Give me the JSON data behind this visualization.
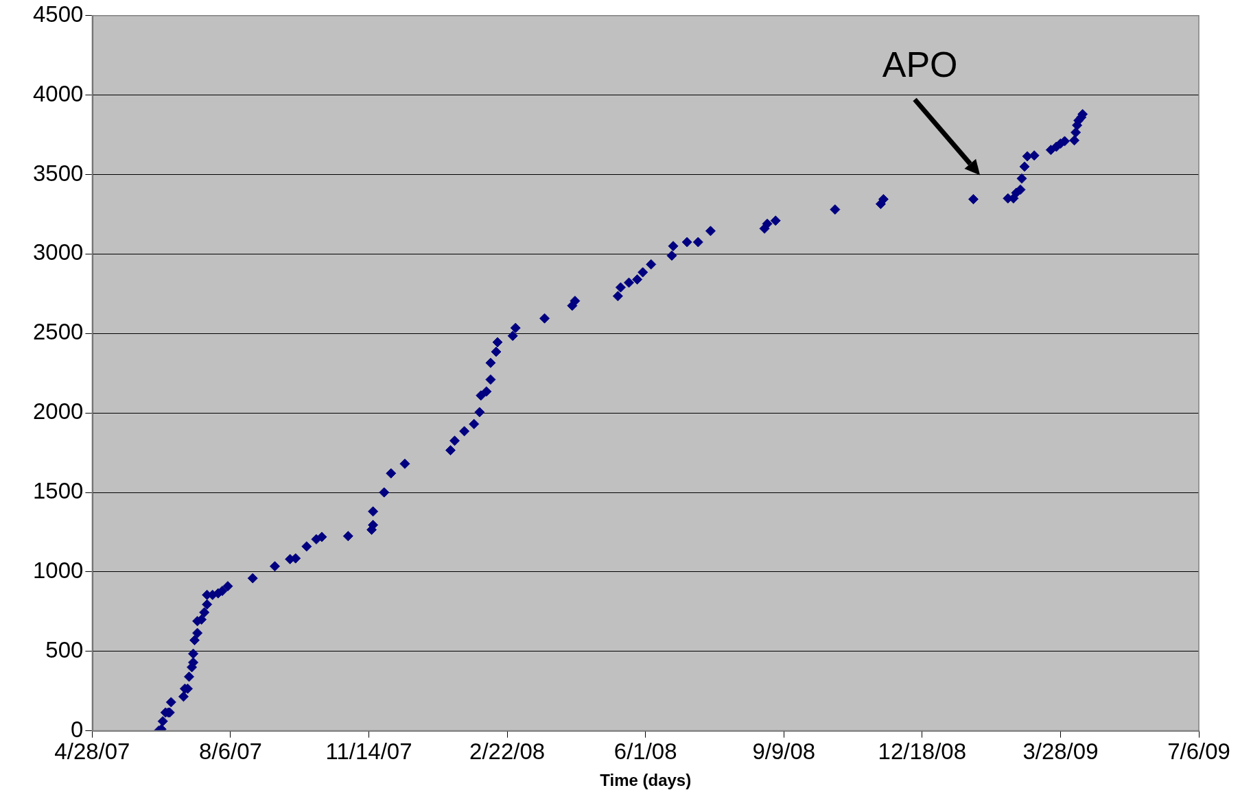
{
  "chart_data": {
    "type": "scatter",
    "xlabel": "Time (days)",
    "x": [
      "2007-06-15",
      "2007-06-17",
      "2007-06-18",
      "2007-06-20",
      "2007-06-22",
      "2007-06-24",
      "2007-06-23",
      "2007-07-03",
      "2007-07-04",
      "2007-07-06",
      "2007-07-07",
      "2007-07-09",
      "2007-07-10",
      "2007-07-10",
      "2007-07-11",
      "2007-07-13",
      "2007-07-13",
      "2007-07-16",
      "2007-07-18",
      "2007-07-20",
      "2007-07-20",
      "2007-07-24",
      "2007-07-28",
      "2007-07-31",
      "2007-08-04",
      "2007-08-22",
      "2007-09-07",
      "2007-09-18",
      "2007-09-22",
      "2007-09-30",
      "2007-10-07",
      "2007-10-11",
      "2007-10-30",
      "2007-11-16",
      "2007-11-17",
      "2007-11-17",
      "2007-11-25",
      "2007-11-30",
      "2007-12-10",
      "2008-01-12",
      "2008-01-15",
      "2008-01-22",
      "2008-01-29",
      "2008-02-02",
      "2008-02-03",
      "2008-02-07",
      "2008-02-10",
      "2008-02-10",
      "2008-02-14",
      "2008-02-15",
      "2008-02-26",
      "2008-02-28",
      "2008-03-20",
      "2008-04-09",
      "2008-04-11",
      "2008-05-12",
      "2008-05-14",
      "2008-05-20",
      "2008-05-26",
      "2008-05-30",
      "2008-06-05",
      "2008-06-20",
      "2008-06-21",
      "2008-07-01",
      "2008-07-09",
      "2008-07-18",
      "2008-08-26",
      "2008-08-28",
      "2008-09-03",
      "2008-10-16",
      "2008-11-18",
      "2008-11-20",
      "2009-01-24",
      "2009-02-18",
      "2009-02-22",
      "2009-02-24",
      "2009-02-27",
      "2009-02-28",
      "2009-03-02",
      "2009-03-04",
      "2009-03-09",
      "2009-03-21",
      "2009-03-25",
      "2009-03-28",
      "2009-03-31",
      "2009-04-07",
      "2009-04-08",
      "2009-04-09",
      "2009-04-10",
      "2009-04-12",
      "2009-04-13"
    ],
    "values": [
      0,
      10,
      60,
      115,
      115,
      180,
      115,
      215,
      265,
      265,
      340,
      400,
      430,
      485,
      570,
      615,
      690,
      700,
      745,
      795,
      855,
      855,
      865,
      880,
      910,
      960,
      1035,
      1080,
      1085,
      1160,
      1205,
      1220,
      1225,
      1265,
      1295,
      1380,
      1500,
      1620,
      1680,
      1765,
      1825,
      1885,
      1930,
      2005,
      2110,
      2135,
      2210,
      2315,
      2385,
      2445,
      2485,
      2535,
      2595,
      2675,
      2705,
      2735,
      2790,
      2820,
      2840,
      2885,
      2935,
      2990,
      3050,
      3075,
      3075,
      3145,
      3160,
      3190,
      3210,
      3280,
      3315,
      3345,
      3345,
      3350,
      3350,
      3385,
      3405,
      3475,
      3550,
      3615,
      3620,
      3655,
      3675,
      3695,
      3710,
      3715,
      3765,
      3810,
      3840,
      3860,
      3880
    ],
    "color": "#000080",
    "marker": "diamond",
    "xlim": [
      "2007-04-28",
      "2009-07-06"
    ],
    "xticks": [
      {
        "value": "2007-04-28",
        "label": "4/28/07"
      },
      {
        "value": "2007-08-06",
        "label": "8/6/07"
      },
      {
        "value": "2007-11-14",
        "label": "11/14/07"
      },
      {
        "value": "2008-02-22",
        "label": "2/22/08"
      },
      {
        "value": "2008-06-01",
        "label": "6/1/08"
      },
      {
        "value": "2008-09-09",
        "label": "9/9/08"
      },
      {
        "value": "2008-12-18",
        "label": "12/18/08"
      },
      {
        "value": "2009-03-28",
        "label": "3/28/09"
      },
      {
        "value": "2009-07-06",
        "label": "7/6/09"
      }
    ],
    "ylim": [
      0,
      4500
    ],
    "yticks": [
      0,
      500,
      1000,
      1500,
      2000,
      2500,
      3000,
      3500,
      4000,
      4500
    ],
    "grid": "y",
    "legend": false,
    "annotations": [
      "APO"
    ]
  }
}
